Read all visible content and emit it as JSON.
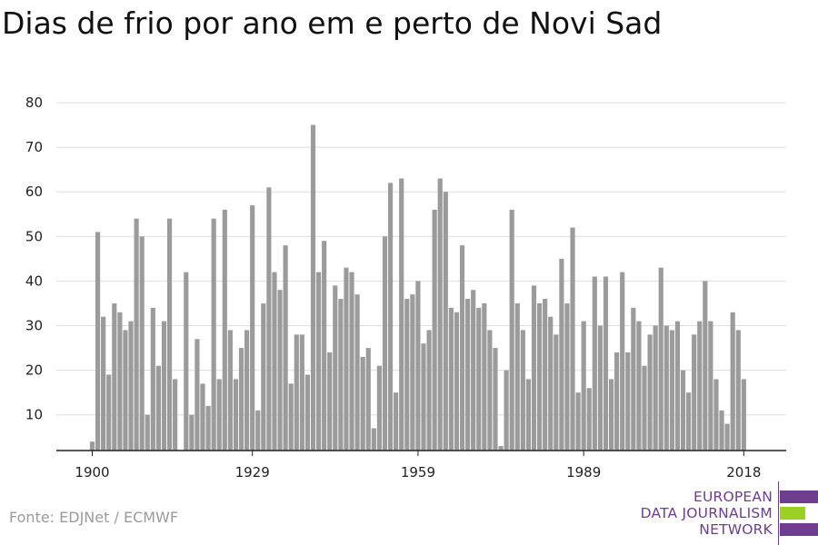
{
  "colors": {
    "bar": "#9b9b9b",
    "grid": "#dddddd",
    "axis": "#222222",
    "logo_purple": "#6f3d8e",
    "logo_green": "#9bd124"
  },
  "source_text": "Fonte: EDJNet / ECMWF",
  "logo": {
    "line1": "EUROPEAN",
    "line2": "DATA JOURNALISM",
    "line3": "NETWORK"
  },
  "chart_data": {
    "type": "bar",
    "title": "Dias de frio por ano em e perto de Novi Sad",
    "xlabel": "",
    "ylabel": "",
    "ylim": [
      2,
      80
    ],
    "yticks": [
      10,
      20,
      30,
      40,
      50,
      60,
      70,
      80
    ],
    "xticks": [
      1900,
      1929,
      1959,
      1989,
      2018
    ],
    "grid": true,
    "x": [
      1900,
      1901,
      1902,
      1903,
      1904,
      1905,
      1906,
      1907,
      1908,
      1909,
      1910,
      1911,
      1912,
      1913,
      1914,
      1915,
      1916,
      1917,
      1918,
      1919,
      1920,
      1921,
      1922,
      1923,
      1924,
      1925,
      1926,
      1927,
      1928,
      1929,
      1930,
      1931,
      1932,
      1933,
      1934,
      1935,
      1936,
      1937,
      1938,
      1939,
      1940,
      1941,
      1942,
      1943,
      1944,
      1945,
      1946,
      1947,
      1948,
      1949,
      1950,
      1951,
      1952,
      1953,
      1954,
      1955,
      1956,
      1957,
      1958,
      1959,
      1960,
      1961,
      1962,
      1963,
      1964,
      1965,
      1966,
      1967,
      1968,
      1969,
      1970,
      1971,
      1972,
      1973,
      1974,
      1975,
      1976,
      1977,
      1978,
      1979,
      1980,
      1981,
      1982,
      1983,
      1984,
      1985,
      1986,
      1987,
      1988,
      1989,
      1990,
      1991,
      1992,
      1993,
      1994,
      1995,
      1996,
      1997,
      1998,
      1999,
      2000,
      2001,
      2002,
      2003,
      2004,
      2005,
      2006,
      2007,
      2008,
      2009,
      2010,
      2011,
      2012,
      2013,
      2014,
      2015,
      2016,
      2017,
      2018
    ],
    "values": [
      4,
      51,
      32,
      19,
      35,
      33,
      29,
      31,
      54,
      50,
      10,
      34,
      21,
      31,
      54,
      18,
      null,
      42,
      10,
      27,
      17,
      12,
      54,
      18,
      56,
      29,
      18,
      25,
      29,
      57,
      11,
      35,
      61,
      42,
      38,
      48,
      17,
      28,
      28,
      19,
      75,
      42,
      49,
      24,
      39,
      36,
      43,
      42,
      37,
      23,
      25,
      7,
      21,
      50,
      62,
      15,
      63,
      36,
      37,
      40,
      26,
      29,
      56,
      63,
      60,
      34,
      33,
      48,
      36,
      38,
      34,
      35,
      29,
      25,
      3,
      20,
      56,
      35,
      29,
      18,
      39,
      35,
      36,
      32,
      28,
      45,
      35,
      52,
      15,
      31,
      16,
      41,
      30,
      41,
      18,
      24,
      42,
      24,
      34,
      31,
      21,
      28,
      30,
      43,
      30,
      29,
      31,
      20,
      15,
      28,
      31,
      40,
      31,
      18,
      11,
      8,
      33,
      29,
      18
    ]
  }
}
